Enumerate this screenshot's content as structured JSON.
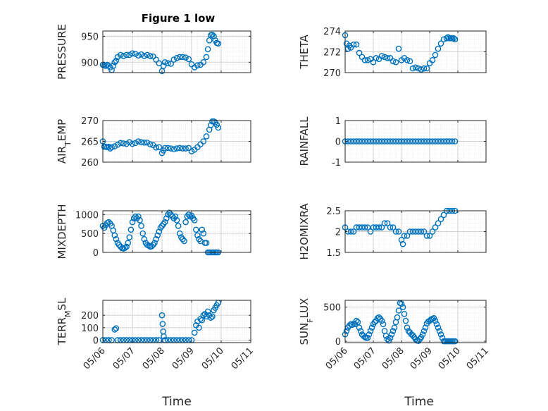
{
  "figure": {
    "title": "Figure 1 low",
    "xlabel": "Time",
    "x_ticks": [
      "05/06",
      "05/07",
      "05/08",
      "05/09",
      "05/10",
      "05/11"
    ],
    "x_range": [
      0,
      5
    ],
    "marker_color": "#0072BD",
    "grid_color": "#d0d0d0"
  },
  "chart_data": [
    {
      "type": "scatter",
      "ylabel": "PRESSURE",
      "ylim": [
        880,
        960
      ],
      "yticks": [
        900,
        950
      ],
      "x": [
        0,
        0.05,
        0.1,
        0.15,
        0.2,
        0.25,
        0.3,
        0.35,
        0.4,
        0.45,
        0.5,
        0.6,
        0.7,
        0.8,
        0.9,
        1.0,
        1.1,
        1.2,
        1.3,
        1.4,
        1.5,
        1.6,
        1.7,
        1.8,
        1.9,
        2.0,
        2.05,
        2.1,
        2.2,
        2.3,
        2.4,
        2.5,
        2.6,
        2.7,
        2.8,
        2.9,
        3.0,
        3.1,
        3.2,
        3.3,
        3.4,
        3.5,
        3.55,
        3.6,
        3.65,
        3.7,
        3.75,
        3.8,
        3.85,
        3.9
      ],
      "y": [
        895,
        894,
        893,
        895,
        893,
        890,
        885,
        893,
        900,
        903,
        910,
        914,
        912,
        914,
        914,
        917,
        916,
        913,
        915,
        912,
        914,
        912,
        911,
        905,
        898,
        883,
        893,
        900,
        898,
        897,
        905,
        908,
        910,
        910,
        909,
        906,
        896,
        890,
        894,
        895,
        900,
        910,
        925,
        942,
        952,
        953,
        950,
        942,
        937,
        936
      ]
    },
    {
      "type": "scatter",
      "ylabel": "THETA",
      "ylim": [
        270,
        274
      ],
      "yticks": [
        270,
        272,
        274
      ],
      "x": [
        0,
        0.05,
        0.1,
        0.15,
        0.2,
        0.3,
        0.4,
        0.5,
        0.6,
        0.7,
        0.8,
        0.9,
        1.0,
        1.1,
        1.2,
        1.3,
        1.4,
        1.5,
        1.6,
        1.7,
        1.8,
        1.9,
        2.0,
        2.1,
        2.2,
        2.3,
        2.4,
        2.5,
        2.6,
        2.7,
        2.8,
        2.9,
        3.0,
        3.1,
        3.2,
        3.3,
        3.4,
        3.5,
        3.6,
        3.65,
        3.7,
        3.75,
        3.8,
        3.85,
        3.9
      ],
      "y": [
        273.6,
        272.8,
        272.3,
        272.6,
        272.4,
        272.7,
        272.7,
        271.9,
        271.5,
        271.2,
        271.2,
        271.3,
        271.0,
        271.4,
        271.3,
        271.6,
        271.5,
        271.4,
        271.4,
        271.1,
        271.0,
        272.3,
        271.2,
        271.4,
        271.2,
        271.1,
        270.4,
        270.5,
        270.4,
        270.3,
        270.4,
        270.4,
        270.9,
        271.2,
        271.7,
        272.3,
        272.8,
        273.2,
        273.3,
        273.4,
        273.3,
        273.3,
        273.3,
        273.3,
        273.2
      ]
    },
    {
      "type": "scatter",
      "ylabel": "AIR_TEMP",
      "ylim": [
        260,
        270
      ],
      "yticks": [
        260,
        265,
        270
      ],
      "x": [
        0,
        0.05,
        0.1,
        0.15,
        0.2,
        0.25,
        0.3,
        0.4,
        0.5,
        0.6,
        0.7,
        0.8,
        0.9,
        1.0,
        1.1,
        1.2,
        1.3,
        1.4,
        1.5,
        1.6,
        1.7,
        1.8,
        1.9,
        2.0,
        2.05,
        2.1,
        2.2,
        2.3,
        2.4,
        2.5,
        2.6,
        2.7,
        2.8,
        2.9,
        3.0,
        3.1,
        3.2,
        3.3,
        3.4,
        3.5,
        3.6,
        3.65,
        3.7,
        3.75,
        3.8,
        3.85,
        3.9
      ],
      "y": [
        265,
        263.7,
        263.7,
        263.6,
        263.7,
        263.3,
        263.6,
        263.8,
        264.2,
        264.6,
        264.5,
        264.4,
        264.8,
        264.4,
        264.6,
        265.0,
        264.8,
        264.7,
        264.7,
        264.3,
        264.1,
        263.5,
        263.6,
        262.2,
        262.8,
        263.4,
        263.4,
        263.3,
        263.1,
        263.3,
        263.4,
        263.3,
        263.3,
        263.4,
        262.6,
        263.0,
        263.6,
        264.3,
        265.0,
        266.2,
        267.8,
        268.9,
        269.8,
        269.8,
        269.6,
        269.0,
        268.3
      ]
    },
    {
      "type": "scatter",
      "ylabel": "RAINFALL",
      "ylim": [
        -1,
        1
      ],
      "yticks": [
        -1,
        0,
        1
      ],
      "x": [
        0,
        0.1,
        0.2,
        0.3,
        0.4,
        0.5,
        0.6,
        0.7,
        0.8,
        0.9,
        1.0,
        1.1,
        1.2,
        1.3,
        1.4,
        1.5,
        1.6,
        1.7,
        1.8,
        1.9,
        2.0,
        2.1,
        2.2,
        2.3,
        2.4,
        2.5,
        2.6,
        2.7,
        2.8,
        2.9,
        3.0,
        3.1,
        3.2,
        3.3,
        3.4,
        3.5,
        3.6,
        3.7,
        3.8,
        3.9
      ],
      "y": [
        0,
        0,
        0,
        0,
        0,
        0,
        0,
        0,
        0,
        0,
        0,
        0,
        0,
        0,
        0,
        0,
        0,
        0,
        0,
        0,
        0,
        0,
        0,
        0,
        0,
        0,
        0,
        0,
        0,
        0,
        0,
        0,
        0,
        0,
        0,
        0,
        0,
        0,
        0,
        0
      ]
    },
    {
      "type": "scatter",
      "ylabel": "MIXDEPTH",
      "ylim": [
        0,
        1100
      ],
      "yticks": [
        0,
        500,
        1000
      ],
      "x": [
        0,
        0.05,
        0.1,
        0.15,
        0.2,
        0.25,
        0.3,
        0.35,
        0.4,
        0.45,
        0.5,
        0.55,
        0.6,
        0.65,
        0.7,
        0.75,
        0.8,
        0.85,
        0.9,
        0.95,
        1.0,
        1.05,
        1.1,
        1.15,
        1.2,
        1.25,
        1.3,
        1.35,
        1.4,
        1.45,
        1.5,
        1.55,
        1.6,
        1.65,
        1.7,
        1.75,
        1.8,
        1.85,
        1.9,
        1.95,
        2.0,
        2.05,
        2.1,
        2.15,
        2.2,
        2.25,
        2.3,
        2.35,
        2.4,
        2.45,
        2.5,
        2.55,
        2.6,
        2.65,
        2.7,
        2.75,
        2.8,
        2.85,
        2.9,
        2.95,
        3.0,
        3.05,
        3.1,
        3.15,
        3.2,
        3.25,
        3.3,
        3.35,
        3.4,
        3.45,
        3.5,
        3.55,
        3.6,
        3.65,
        3.7,
        3.75,
        3.8,
        3.85,
        3.9
      ],
      "y": [
        700,
        650,
        720,
        780,
        800,
        760,
        700,
        580,
        450,
        350,
        250,
        200,
        150,
        110,
        100,
        120,
        150,
        250,
        400,
        600,
        800,
        900,
        950,
        900,
        950,
        850,
        700,
        500,
        350,
        250,
        200,
        180,
        150,
        160,
        200,
        250,
        350,
        450,
        550,
        650,
        700,
        750,
        800,
        900,
        1000,
        1050,
        1000,
        950,
        900,
        950,
        850,
        700,
        500,
        400,
        350,
        300,
        800,
        950,
        1000,
        950,
        970,
        900,
        850,
        600,
        450,
        350,
        300,
        600,
        500,
        250,
        250,
        0,
        0,
        0,
        0,
        0,
        0,
        0,
        0
      ]
    },
    {
      "type": "scatter",
      "ylabel": "H2OMIXRA",
      "ylim": [
        1.5,
        2.5
      ],
      "yticks": [
        1.5,
        2,
        2.5
      ],
      "x": [
        0,
        0.1,
        0.2,
        0.3,
        0.4,
        0.5,
        0.6,
        0.7,
        0.8,
        0.9,
        1.0,
        1.1,
        1.2,
        1.3,
        1.4,
        1.5,
        1.6,
        1.7,
        1.8,
        1.9,
        2.0,
        2.05,
        2.1,
        2.2,
        2.3,
        2.4,
        2.5,
        2.6,
        2.7,
        2.8,
        2.9,
        3.0,
        3.1,
        3.2,
        3.3,
        3.4,
        3.5,
        3.6,
        3.7,
        3.8,
        3.9
      ],
      "y": [
        2.1,
        2.0,
        2.0,
        2.0,
        2.1,
        2.1,
        2.1,
        2.1,
        2.1,
        2.0,
        2.1,
        2.1,
        2.1,
        2.1,
        2.2,
        2.2,
        2.1,
        2.1,
        2.0,
        2.0,
        1.8,
        1.7,
        1.9,
        1.9,
        2.0,
        2.0,
        2.0,
        2.0,
        2.0,
        2.0,
        1.9,
        1.9,
        2.0,
        2.1,
        2.2,
        2.3,
        2.4,
        2.5,
        2.5,
        2.5,
        2.5
      ]
    },
    {
      "type": "scatter",
      "ylabel": "TERR_MSL",
      "ylim": [
        -20,
        320
      ],
      "yticks": [
        0,
        100,
        200
      ],
      "x": [
        0,
        0.1,
        0.2,
        0.3,
        0.4,
        0.45,
        0.5,
        0.6,
        0.7,
        0.8,
        0.9,
        1.0,
        1.1,
        1.2,
        1.3,
        1.4,
        1.5,
        1.6,
        1.7,
        1.8,
        1.9,
        2.0,
        2.02,
        2.04,
        2.06,
        2.1,
        2.2,
        2.3,
        2.4,
        2.5,
        2.6,
        2.7,
        2.8,
        2.9,
        3.0,
        3.1,
        3.15,
        3.2,
        3.25,
        3.3,
        3.35,
        3.4,
        3.45,
        3.5,
        3.55,
        3.6,
        3.65,
        3.7,
        3.75,
        3.8,
        3.85,
        3.9
      ],
      "y": [
        0,
        0,
        0,
        0,
        85,
        95,
        0,
        0,
        0,
        0,
        0,
        0,
        0,
        0,
        0,
        0,
        0,
        0,
        0,
        0,
        0,
        200,
        130,
        70,
        30,
        0,
        0,
        0,
        0,
        0,
        0,
        0,
        0,
        0,
        0,
        60,
        120,
        150,
        100,
        170,
        160,
        200,
        210,
        190,
        230,
        200,
        180,
        190,
        240,
        260,
        280,
        300
      ]
    },
    {
      "type": "scatter",
      "ylabel": "SUN_FLUX",
      "ylim": [
        -20,
        600
      ],
      "yticks": [
        0,
        500
      ],
      "x": [
        0,
        0.05,
        0.1,
        0.15,
        0.2,
        0.25,
        0.3,
        0.35,
        0.4,
        0.45,
        0.5,
        0.55,
        0.6,
        0.65,
        0.7,
        0.75,
        0.8,
        0.85,
        0.9,
        0.95,
        1.0,
        1.05,
        1.1,
        1.15,
        1.2,
        1.25,
        1.3,
        1.35,
        1.4,
        1.45,
        1.5,
        1.55,
        1.6,
        1.65,
        1.7,
        1.75,
        1.8,
        1.85,
        1.9,
        1.95,
        2.0,
        2.05,
        2.1,
        2.15,
        2.2,
        2.25,
        2.3,
        2.35,
        2.4,
        2.45,
        2.5,
        2.55,
        2.6,
        2.65,
        2.7,
        2.75,
        2.8,
        2.85,
        2.9,
        2.95,
        3.0,
        3.05,
        3.1,
        3.15,
        3.2,
        3.25,
        3.3,
        3.35,
        3.4,
        3.45,
        3.5,
        3.55,
        3.6,
        3.65,
        3.7,
        3.75,
        3.8,
        3.85,
        3.9
      ],
      "y": [
        100,
        150,
        200,
        230,
        250,
        240,
        260,
        250,
        300,
        280,
        200,
        150,
        100,
        80,
        60,
        50,
        50,
        100,
        150,
        200,
        250,
        280,
        300,
        340,
        350,
        330,
        300,
        250,
        150,
        80,
        30,
        10,
        50,
        100,
        150,
        200,
        280,
        350,
        450,
        560,
        550,
        500,
        400,
        300,
        200,
        150,
        130,
        100,
        90,
        60,
        30,
        10,
        5,
        30,
        60,
        100,
        150,
        200,
        260,
        290,
        300,
        320,
        330,
        340,
        300,
        250,
        200,
        150,
        100,
        50,
        0,
        0,
        0,
        0,
        0,
        0,
        0,
        0,
        0
      ]
    }
  ]
}
